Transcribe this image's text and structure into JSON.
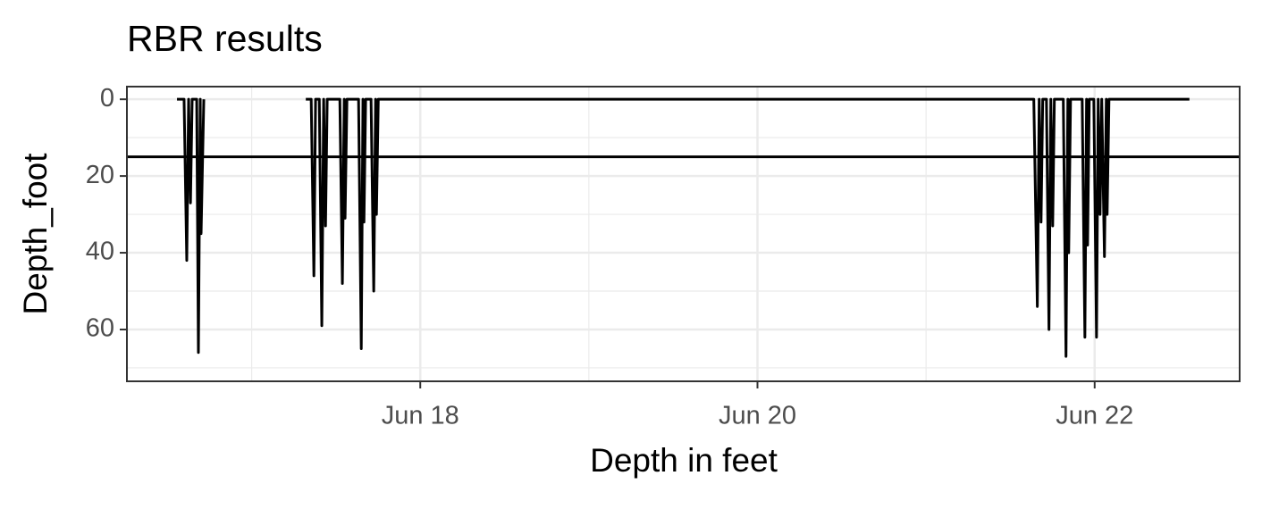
{
  "chart_data": {
    "type": "line",
    "title": "RBR results",
    "x_label": "Depth in feet",
    "y_label": "Depth_foot",
    "x": [
      16.557,
      16.599,
      16.615,
      16.626,
      16.637,
      16.647,
      16.674,
      16.684,
      16.695,
      16.7,
      16.716,
      null,
      17.321,
      17.353,
      17.369,
      17.379,
      17.401,
      17.416,
      17.427,
      17.438,
      17.448,
      17.523,
      17.538,
      17.549,
      17.554,
      17.565,
      17.634,
      17.65,
      17.66,
      17.666,
      17.676,
      17.708,
      17.724,
      17.735,
      17.74,
      17.751,
      21.639,
      21.66,
      21.671,
      21.682,
      21.692,
      21.714,
      21.729,
      21.74,
      21.751,
      21.761,
      21.814,
      21.83,
      21.841,
      21.846,
      21.857,
      21.926,
      21.942,
      21.952,
      21.958,
      21.968,
      21.995,
      22.011,
      22.021,
      22.032,
      22.042,
      22.058,
      22.069,
      22.074,
      22.085,
      22.562
    ],
    "values": [
      0,
      0,
      42,
      0,
      27,
      0,
      0,
      66,
      0,
      35,
      0,
      null,
      0,
      0,
      46,
      0,
      0,
      59,
      0,
      33,
      0,
      0,
      48,
      0,
      31,
      0,
      0,
      65,
      0,
      32,
      0,
      0,
      50,
      0,
      30,
      0,
      0,
      54,
      0,
      32,
      0,
      0,
      60,
      0,
      33,
      0,
      0,
      67,
      0,
      40,
      0,
      0,
      62,
      0,
      38,
      0,
      0,
      62,
      0,
      30,
      0,
      41,
      0,
      30,
      0,
      0
    ],
    "color": "#000000",
    "hline": 15,
    "xlim": [
      16.26,
      22.86
    ],
    "xticks": [
      {
        "value": 18,
        "label": "Jun 18"
      },
      {
        "value": 20,
        "label": "Jun 20"
      },
      {
        "value": 22,
        "label": "Jun 22"
      }
    ],
    "minor_xticks": [
      17,
      19,
      21
    ],
    "ylim": [
      -3.3,
      73.5
    ],
    "y_reversed": true,
    "yticks": [
      0,
      20,
      40,
      60
    ],
    "minor_yticks": [
      10,
      30,
      50,
      70
    ],
    "grid": true
  }
}
